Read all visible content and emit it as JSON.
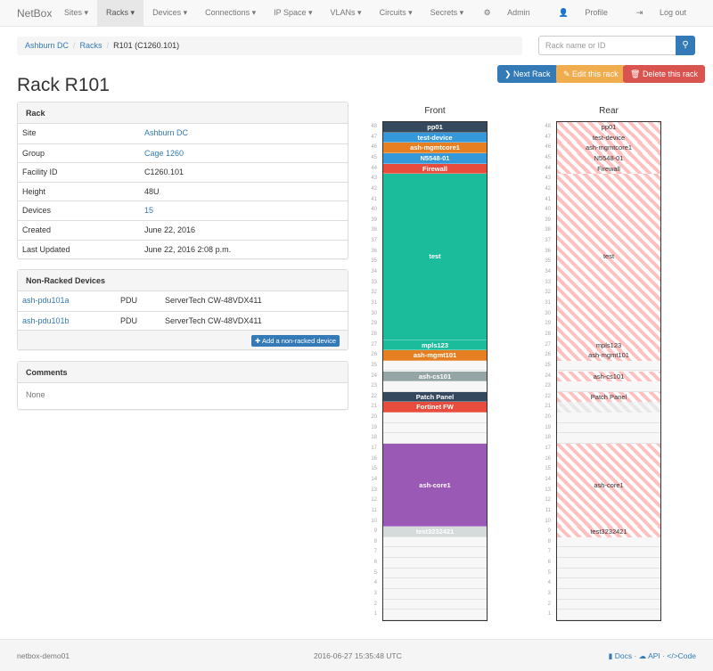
{
  "nav": {
    "brand": "NetBox",
    "items": [
      "Sites",
      "Racks",
      "Devices",
      "Connections",
      "IP Space",
      "VLANs",
      "Circuits",
      "Secrets"
    ],
    "active": "Racks",
    "right": [
      {
        "icon": "gear-icon",
        "label": "Admin"
      },
      {
        "icon": "user-icon",
        "label": "Profile"
      },
      {
        "icon": "logout-icon",
        "label": "Log out"
      }
    ]
  },
  "breadcrumb": [
    "Ashburn DC",
    "Racks",
    "R101 (C1260.101)"
  ],
  "search": {
    "placeholder": "Rack name or ID",
    "value": ""
  },
  "buttons": {
    "next": "Next Rack",
    "edit": "Edit this rack",
    "delete": "Delete this rack"
  },
  "title": "Rack R101",
  "rack_panel": {
    "heading": "Rack",
    "rows": [
      {
        "label": "Site",
        "value": "Ashburn DC",
        "link": true
      },
      {
        "label": "Group",
        "value": "Cage 1260",
        "link": true
      },
      {
        "label": "Facility ID",
        "value": "C1260.101",
        "link": false
      },
      {
        "label": "Height",
        "value": "48U",
        "link": false
      },
      {
        "label": "Devices",
        "value": "15",
        "link": true
      },
      {
        "label": "Created",
        "value": "June 22, 2016",
        "link": false
      },
      {
        "label": "Last Updated",
        "value": "June 22, 2016 2:08 p.m.",
        "link": false
      }
    ]
  },
  "nonracked": {
    "heading": "Non-Racked Devices",
    "rows": [
      {
        "name": "ash-pdu101a",
        "role": "PDU",
        "type": "ServerTech CW-48VDX411"
      },
      {
        "name": "ash-pdu101b",
        "role": "PDU",
        "type": "ServerTech CW-48VDX411"
      }
    ],
    "add_label": "Add a non-racked device"
  },
  "comments": {
    "heading": "Comments",
    "body": "None"
  },
  "elevation": {
    "front_label": "Front",
    "rear_label": "Rear",
    "height_u": 48,
    "devices": [
      {
        "name": "pp01",
        "top": 48,
        "size": 1,
        "color": "#34495e",
        "rear": true
      },
      {
        "name": "test-device",
        "top": 47,
        "size": 1,
        "color": "#3498db",
        "rear": true
      },
      {
        "name": "ash-mgmtcore1",
        "top": 46,
        "size": 1,
        "color": "#e67e22",
        "rear": true
      },
      {
        "name": "N5548-01",
        "top": 45,
        "size": 1,
        "color": "#3498db",
        "rear": true
      },
      {
        "name": "Firewall",
        "top": 44,
        "size": 1,
        "color": "#e74c3c",
        "rear": true
      },
      {
        "name": "test",
        "top": 43,
        "size": 16,
        "color": "#1abc9c",
        "rear": true
      },
      {
        "name": "mpls123",
        "top": 27,
        "size": 1,
        "color": "#1abc9c",
        "rear": true
      },
      {
        "name": "ash-mgmt101",
        "top": 26,
        "size": 1,
        "color": "#e67e22",
        "rear": true
      },
      {
        "name": "ash-cs101",
        "top": 24,
        "size": 1,
        "color": "#95a5a6",
        "rear": true
      },
      {
        "name": "Patch Panel",
        "top": 22,
        "size": 1,
        "color": "#34495e",
        "rear": true
      },
      {
        "name": "Fortinet FW",
        "top": 21,
        "size": 1,
        "color": "#e74c3c",
        "rear": false
      },
      {
        "name": "ash-core1",
        "top": 17,
        "size": 8,
        "color": "#9b59b6",
        "rear": true
      },
      {
        "name": "test3232421",
        "top": 9,
        "size": 1,
        "color": "#d5dbdb",
        "rear": true
      }
    ]
  },
  "footer": {
    "host": "netbox-demo01",
    "time": "2016-06-27 15:35:48 UTC",
    "docs": "Docs",
    "api": "API",
    "code": "Code",
    "sep": "·"
  }
}
